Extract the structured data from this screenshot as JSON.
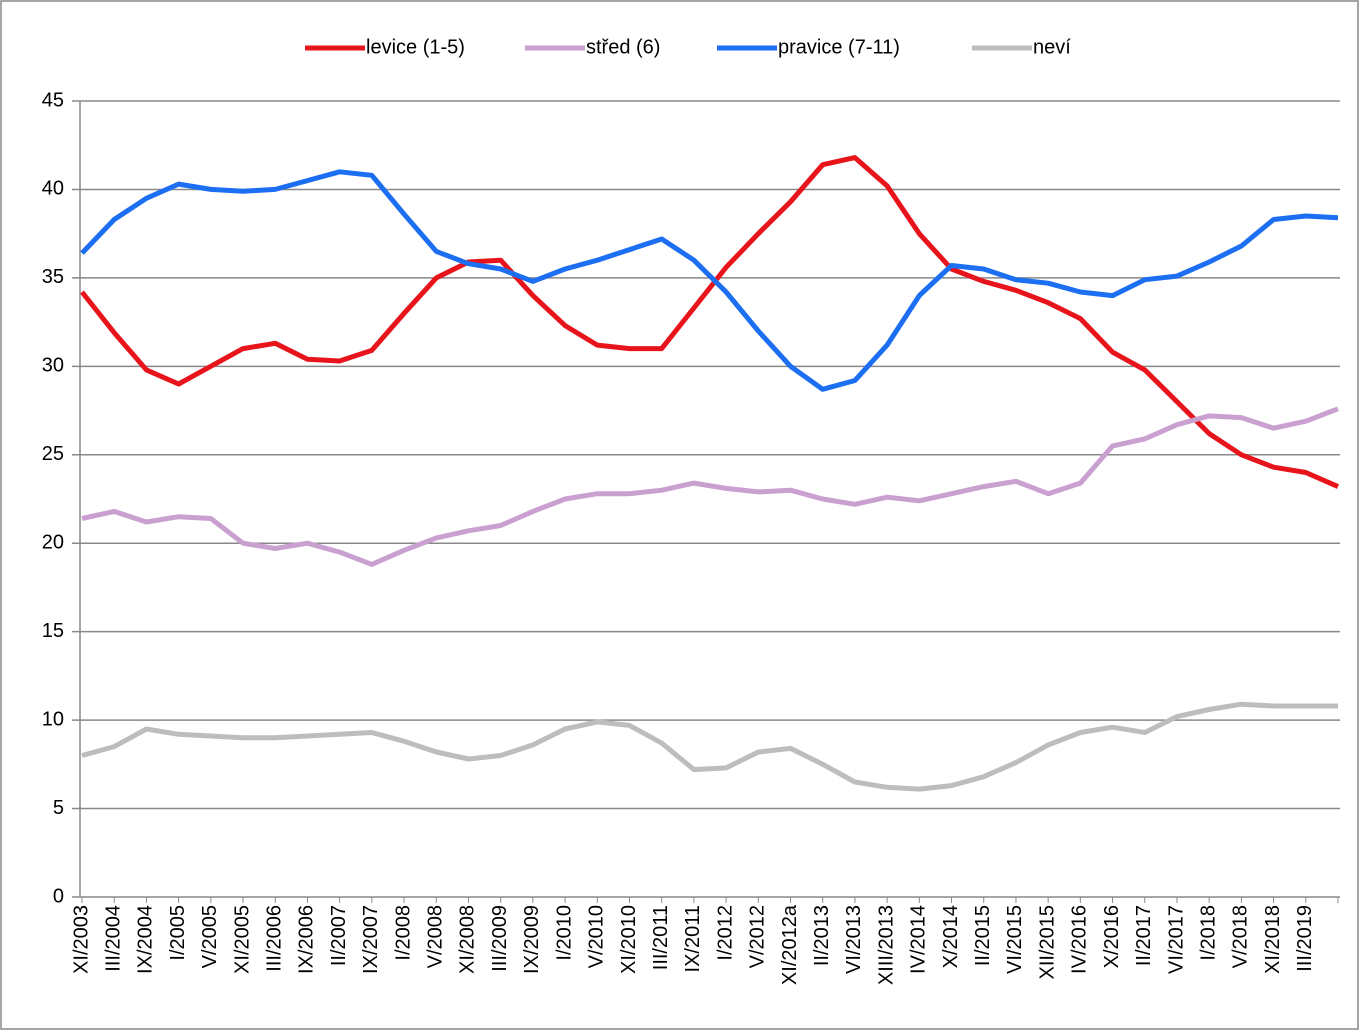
{
  "chart_data": {
    "type": "line",
    "categories": [
      "XI/2003",
      "III/2004",
      "IX/2004",
      "I/2005",
      "V/2005",
      "XI/2005",
      "III/2006",
      "IX/2006",
      "II/2007",
      "IX/2007",
      "I/2008",
      "V/2008",
      "XI/2008",
      "III/2009",
      "IX/2009",
      "I/2010",
      "V/2010",
      "XI/2010",
      "III/2011",
      "IX/2011",
      "I/2012",
      "V/2012",
      "XI/2012a",
      "II/2013",
      "VI/2013",
      "XIII/2013",
      "IV/2014",
      "X/2014",
      "II/2015",
      "VI/2015",
      "XII/2015",
      "IV/2016",
      "X/2016",
      "II/2017",
      "VI/2017",
      "I/2018",
      "V/2018",
      "XI/2018",
      "III/2019",
      null
    ],
    "series": [
      {
        "name": "levice (1-5)",
        "color": "#e8141c",
        "values": [
          34.2,
          31.9,
          29.8,
          29.0,
          30.0,
          31.0,
          31.3,
          30.4,
          30.3,
          30.9,
          33.0,
          35.0,
          35.9,
          36.0,
          34.0,
          32.3,
          31.2,
          31.0,
          31.0,
          33.3,
          35.6,
          37.5,
          39.3,
          41.4,
          41.8,
          40.2,
          37.5,
          35.5,
          34.8,
          34.3,
          33.6,
          32.7,
          30.8,
          29.8,
          28.0,
          26.2,
          25.0,
          24.3,
          24.0,
          23.2
        ]
      },
      {
        "name": "střed (6)",
        "color": "#c9a0d0",
        "values": [
          21.4,
          21.8,
          21.2,
          21.5,
          21.4,
          20.0,
          19.7,
          20.0,
          19.5,
          18.8,
          19.6,
          20.3,
          20.7,
          21.0,
          21.8,
          22.5,
          22.8,
          22.8,
          23.0,
          23.4,
          23.1,
          22.9,
          23.0,
          22.5,
          22.2,
          22.6,
          22.4,
          22.8,
          23.2,
          23.5,
          22.8,
          23.4,
          25.5,
          25.9,
          26.7,
          27.2,
          27.1,
          26.5,
          26.9,
          27.6
        ]
      },
      {
        "name": "pravice (7-11)",
        "color": "#1c6ef2",
        "values": [
          36.4,
          38.3,
          39.5,
          40.3,
          40.0,
          39.9,
          40.0,
          40.5,
          41.0,
          40.8,
          38.6,
          36.5,
          35.8,
          35.5,
          34.8,
          35.5,
          36.0,
          36.6,
          37.2,
          36.0,
          34.2,
          32.0,
          30.0,
          28.7,
          29.2,
          31.2,
          34.0,
          35.7,
          35.5,
          34.9,
          34.7,
          34.2,
          34.0,
          34.9,
          35.1,
          35.9,
          36.8,
          38.3,
          38.5,
          38.4
        ]
      },
      {
        "name": "neví",
        "color": "#bdbdbd",
        "values": [
          8.0,
          8.5,
          9.5,
          9.2,
          9.1,
          9.0,
          9.0,
          9.1,
          9.2,
          9.3,
          8.8,
          8.2,
          7.8,
          8.0,
          8.6,
          9.5,
          9.9,
          9.7,
          8.7,
          7.2,
          7.3,
          8.2,
          8.4,
          7.5,
          6.5,
          6.2,
          6.1,
          6.3,
          6.8,
          7.6,
          8.6,
          9.3,
          9.6,
          9.3,
          10.2,
          10.6,
          10.9,
          10.8,
          10.8,
          10.8
        ]
      }
    ],
    "ylim": [
      0,
      45
    ],
    "yticks": [
      0,
      5,
      10,
      15,
      20,
      25,
      30,
      35,
      40,
      45
    ],
    "grid": true
  }
}
